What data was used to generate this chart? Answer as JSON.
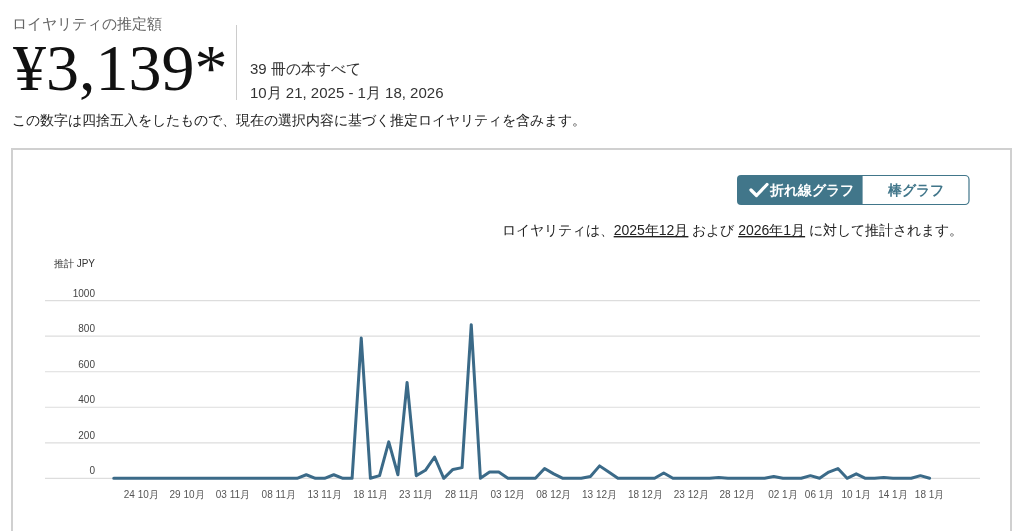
{
  "chart_data": {
    "type": "line",
    "title": "ロイヤリティの推定額",
    "ylabel": "推計 JPY",
    "annotations": [
      "¥3,139*",
      "39 冊の本すべて",
      "10月 21, 2025 - 1月 18, 2026",
      "この数字は四捨五入をしたもので、現在の選択内容に基づく推定ロイヤリティを含みます。",
      "折れ線グラフ",
      "棒グラフ",
      "ロイヤリティは、",
      "2025年12月",
      " および ",
      "2026年1月",
      " に対して推計されます。"
    ],
    "x": [
      "2025-10-21",
      "2025-10-22",
      "2025-10-23",
      "2025-10-24",
      "2025-10-25",
      "2025-10-26",
      "2025-10-27",
      "2025-10-28",
      "2025-10-29",
      "2025-10-30",
      "2025-10-31",
      "2025-11-01",
      "2025-11-02",
      "2025-11-03",
      "2025-11-04",
      "2025-11-05",
      "2025-11-06",
      "2025-11-07",
      "2025-11-08",
      "2025-11-09",
      "2025-11-10",
      "2025-11-11",
      "2025-11-12",
      "2025-11-13",
      "2025-11-14",
      "2025-11-15",
      "2025-11-16",
      "2025-11-17",
      "2025-11-18",
      "2025-11-19",
      "2025-11-20",
      "2025-11-21",
      "2025-11-22",
      "2025-11-23",
      "2025-11-24",
      "2025-11-25",
      "2025-11-26",
      "2025-11-27",
      "2025-11-28",
      "2025-11-29",
      "2025-11-30",
      "2025-12-01",
      "2025-12-02",
      "2025-12-03",
      "2025-12-04",
      "2025-12-05",
      "2025-12-06",
      "2025-12-07",
      "2025-12-08",
      "2025-12-09",
      "2025-12-10",
      "2025-12-11",
      "2025-12-12",
      "2025-12-13",
      "2025-12-14",
      "2025-12-15",
      "2025-12-16",
      "2025-12-17",
      "2025-12-18",
      "2025-12-19",
      "2025-12-20",
      "2025-12-21",
      "2025-12-22",
      "2025-12-23",
      "2025-12-24",
      "2025-12-25",
      "2025-12-26",
      "2025-12-27",
      "2025-12-28",
      "2025-12-29",
      "2025-12-30",
      "2025-12-31",
      "2026-01-01",
      "2026-01-02",
      "2026-01-03",
      "2026-01-04",
      "2026-01-05",
      "2026-01-06",
      "2026-01-07",
      "2026-01-08",
      "2026-01-09",
      "2026-01-10",
      "2026-01-11",
      "2026-01-12",
      "2026-01-13",
      "2026-01-14",
      "2026-01-15",
      "2026-01-16",
      "2026-01-17",
      "2026-01-18"
    ],
    "series": [
      {
        "color": "#3b6a88",
        "values": [
          0,
          0,
          0,
          0,
          0,
          0,
          0,
          0,
          0,
          0,
          0,
          0,
          0,
          0,
          0,
          0,
          0,
          0,
          0,
          0,
          0,
          20,
          0,
          0,
          20,
          0,
          0,
          790,
          0,
          15,
          205,
          20,
          540,
          15,
          45,
          120,
          0,
          50,
          60,
          865,
          0,
          35,
          35,
          0,
          0,
          0,
          0,
          55,
          25,
          0,
          0,
          0,
          10,
          70,
          35,
          0,
          0,
          0,
          0,
          0,
          30,
          0,
          0,
          0,
          0,
          0,
          5,
          0,
          0,
          0,
          0,
          0,
          10,
          0,
          0,
          0,
          15,
          0,
          35,
          55,
          0,
          25,
          0,
          0,
          5,
          0,
          0,
          0,
          15,
          0
        ]
      }
    ],
    "xlim": [
      "2025-10-13T12:00",
      "2026-01-23T12:00"
    ],
    "xticks": [
      {
        "value": "2025-10-24",
        "label": "24 10月"
      },
      {
        "value": "2025-10-29",
        "label": "29 10月"
      },
      {
        "value": "2025-11-03",
        "label": "03 11月"
      },
      {
        "value": "2025-11-08",
        "label": "08 11月"
      },
      {
        "value": "2025-11-13",
        "label": "13 11月"
      },
      {
        "value": "2025-11-18",
        "label": "18 11月"
      },
      {
        "value": "2025-11-23",
        "label": "23 11月"
      },
      {
        "value": "2025-11-28",
        "label": "28 11月"
      },
      {
        "value": "2025-12-03",
        "label": "03 12月"
      },
      {
        "value": "2025-12-08",
        "label": "08 12月"
      },
      {
        "value": "2025-12-13",
        "label": "13 12月"
      },
      {
        "value": "2025-12-18",
        "label": "18 12月"
      },
      {
        "value": "2025-12-23",
        "label": "23 12月"
      },
      {
        "value": "2025-12-28",
        "label": "28 12月"
      },
      {
        "value": "2026-01-02",
        "label": "02 1月"
      },
      {
        "value": "2026-01-06",
        "label": "06 1月"
      },
      {
        "value": "2026-01-10",
        "label": "10 1月"
      },
      {
        "value": "2026-01-14",
        "label": "14 1月"
      },
      {
        "value": "2026-01-18",
        "label": "18 1月"
      }
    ],
    "ylim": [
      0,
      1000
    ],
    "yticks": [
      0,
      200,
      400,
      600,
      800,
      1000
    ],
    "grid": "y"
  }
}
